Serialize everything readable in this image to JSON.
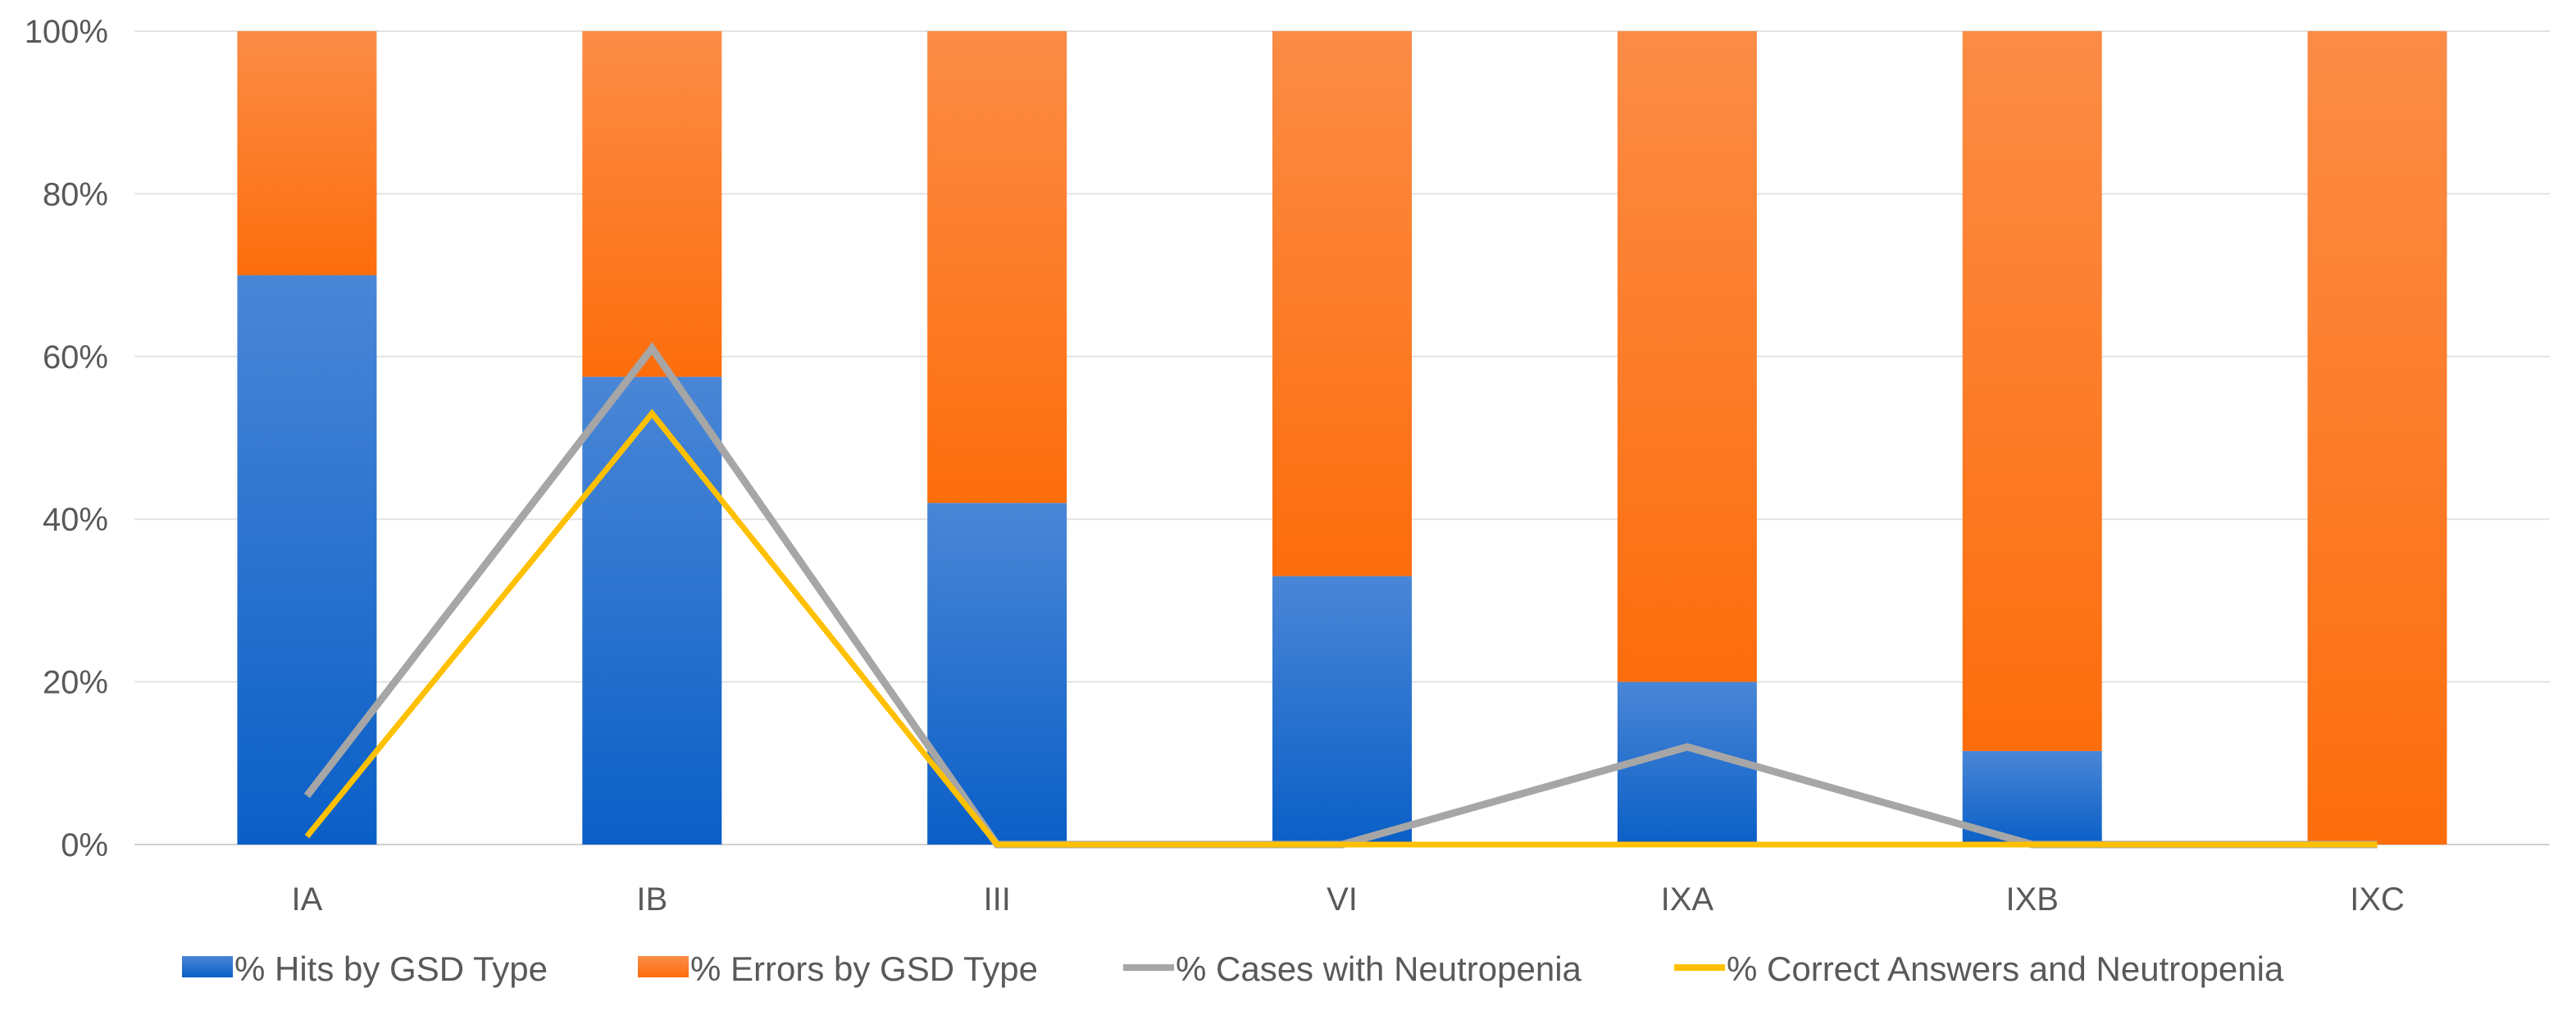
{
  "chart_data": {
    "type": "bar",
    "stacked": true,
    "percent": true,
    "categories": [
      "IA",
      "IB",
      "III",
      "VI",
      "IXA",
      "IXB",
      "IXC"
    ],
    "y_ticks": [
      "0%",
      "20%",
      "40%",
      "60%",
      "80%",
      "100%"
    ],
    "ylim": [
      0,
      100
    ],
    "grid": true,
    "legend_position": "bottom",
    "series": [
      {
        "name": "% Hits by GSD Type",
        "kind": "bar",
        "color": "#2f6fcc",
        "values": [
          70,
          57.5,
          42,
          33,
          20,
          11.5,
          0
        ]
      },
      {
        "name": "% Errors by GSD Type",
        "kind": "bar",
        "color": "#f57d25",
        "values": [
          30,
          42.5,
          58,
          67,
          80,
          88.5,
          100
        ]
      },
      {
        "name": "% Cases with Neutropenia",
        "kind": "line",
        "color": "#a6a6a6",
        "values": [
          6,
          61,
          0,
          0,
          12,
          0,
          0
        ]
      },
      {
        "name": "% Correct Answers and Neutropenia",
        "kind": "line",
        "color": "#ffc000",
        "values": [
          1,
          53,
          0,
          0,
          0,
          0,
          0
        ]
      }
    ]
  }
}
